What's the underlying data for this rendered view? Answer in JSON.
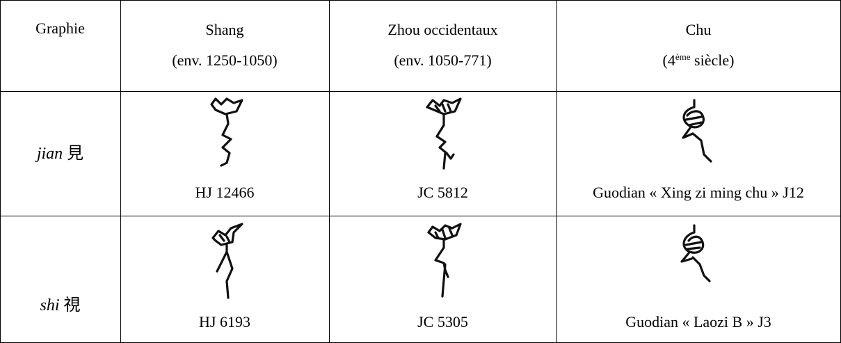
{
  "header": [
    "Graphie",
    [
      "Shang",
      "(env. 1250-1050)"
    ],
    [
      "Zhou occidentaux",
      "(env. 1050-771)"
    ],
    [
      "Chu",
      {
        "pre": "(4",
        "sup": "ème",
        "post": " siècle)"
      }
    ]
  ],
  "rows": [
    {
      "label": {
        "roman": "jian",
        "char": "見"
      },
      "cells": [
        "HJ 12466",
        "JC 5812",
        "Guodian « Xing zi ming chu » J12"
      ]
    },
    {
      "label": {
        "roman": "shi",
        "char": "視"
      },
      "cells": [
        "HJ 6193",
        "JC 5305",
        "Guodian « Laozi B » J3"
      ]
    }
  ]
}
